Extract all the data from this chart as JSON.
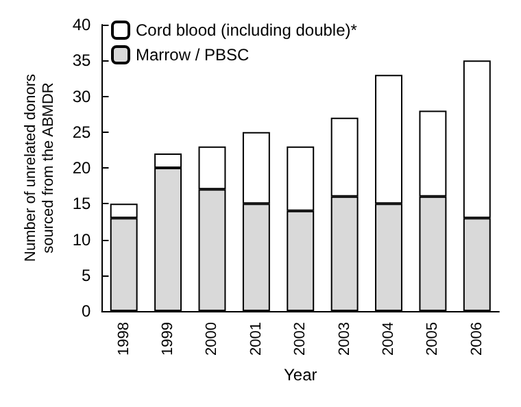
{
  "chart_data": {
    "type": "bar",
    "stacked": true,
    "xlabel": "Year",
    "ylabel": "Number of unrelated donors\nsourced from the ABMDR",
    "categories": [
      "1998",
      "1999",
      "2000",
      "2001",
      "2002",
      "2003",
      "2004",
      "2005",
      "2006"
    ],
    "series": [
      {
        "name": "Marrow / PBSC",
        "color": "#d9d9d9",
        "values": [
          13,
          20,
          17,
          15,
          14,
          16,
          15,
          16,
          13
        ]
      },
      {
        "name": "Cord blood (including double)*",
        "color": "#ffffff",
        "values": [
          2,
          2,
          6,
          10,
          9,
          11,
          18,
          12,
          22
        ]
      }
    ],
    "ylim": [
      0,
      40
    ],
    "yticks": [
      0,
      5,
      10,
      15,
      20,
      25,
      30,
      35,
      40
    ],
    "grid": false,
    "legend": "top left"
  }
}
